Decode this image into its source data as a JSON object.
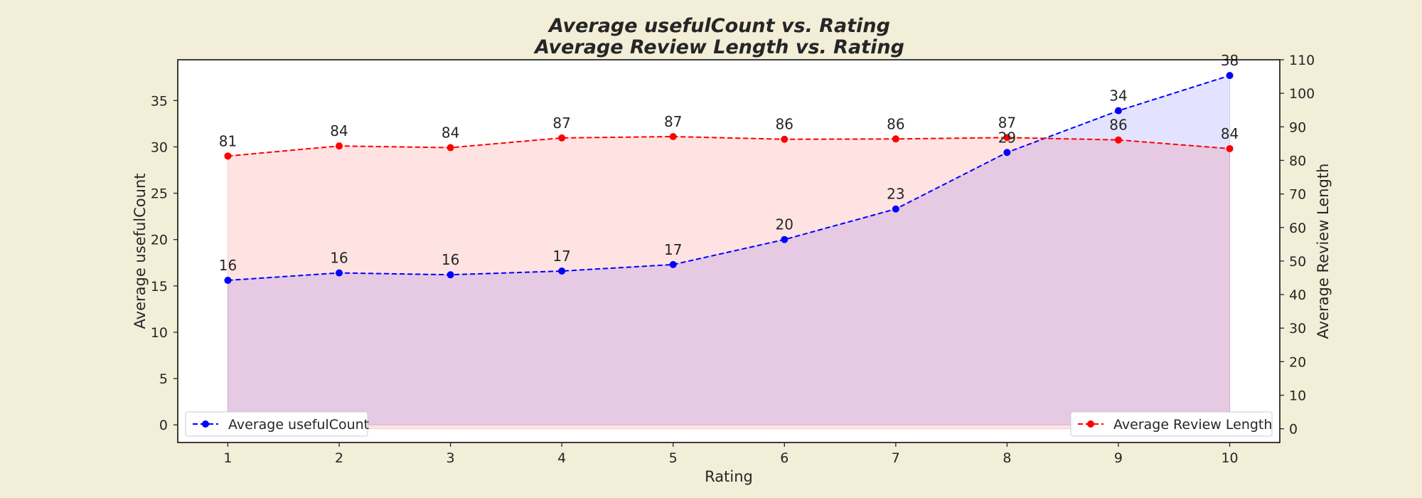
{
  "chart_data": {
    "type": "line",
    "title_line1": "Average usefulCount vs. Rating",
    "title_line2": "Average Review Length vs. Rating",
    "xlabel": "Rating",
    "ylabel_left": "Average usefulCount",
    "ylabel_right": "Average Review Length",
    "x": [
      1,
      2,
      3,
      4,
      5,
      6,
      7,
      8,
      9,
      10
    ],
    "xlim": [
      0.55,
      10.45
    ],
    "ylim_left": [
      -1.9,
      39.4
    ],
    "ylim_right": [
      -4.1,
      110
    ],
    "yticks_left": [
      0,
      5,
      10,
      15,
      20,
      25,
      30,
      35
    ],
    "yticks_right": [
      0,
      10,
      20,
      30,
      40,
      50,
      60,
      70,
      80,
      90,
      100,
      110
    ],
    "grid": false,
    "series": [
      {
        "name": "Average usefulCount",
        "axis": "left",
        "color": "#0000ff",
        "fill_color": "#0000ff",
        "values": [
          15.6,
          16.4,
          16.2,
          16.6,
          17.3,
          20.0,
          23.3,
          29.4,
          33.9,
          37.7
        ],
        "labels": [
          "16",
          "16",
          "16",
          "17",
          "17",
          "20",
          "23",
          "29",
          "34",
          "38"
        ],
        "legend": "lower-left"
      },
      {
        "name": "Average Review Length",
        "axis": "right",
        "color": "#ff0000",
        "fill_color": "#ff0000",
        "values": [
          81.3,
          84.3,
          83.8,
          86.7,
          87.1,
          86.3,
          86.4,
          86.8,
          86.1,
          83.5
        ],
        "labels": [
          "81",
          "84",
          "84",
          "87",
          "87",
          "86",
          "86",
          "87",
          "86",
          "84"
        ],
        "legend": "lower-right"
      }
    ]
  }
}
